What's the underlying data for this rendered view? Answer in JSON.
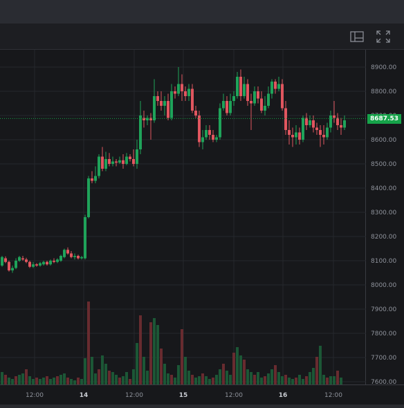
{
  "toolbar": {
    "layout_icon": "layout-panel-icon",
    "fullscreen_icon": "fullscreen-icon"
  },
  "price_axis": {
    "ticks": [
      "8900.00",
      "8800.00",
      "8700.00",
      "8600.00",
      "8500.00",
      "8400.00",
      "8300.00",
      "8200.00",
      "8100.00",
      "8000.00",
      "7900.00",
      "7800.00",
      "7700.00",
      "7600.00"
    ]
  },
  "time_axis": {
    "ticks": [
      "12:00",
      "14",
      "12:00",
      "15",
      "12:00",
      "16",
      "12:00"
    ]
  },
  "last_price": "8687.53",
  "colors": {
    "up": "#1fa35a",
    "down": "#e0565f",
    "last_price": "#16a34a",
    "grid": "#26282d"
  }
}
